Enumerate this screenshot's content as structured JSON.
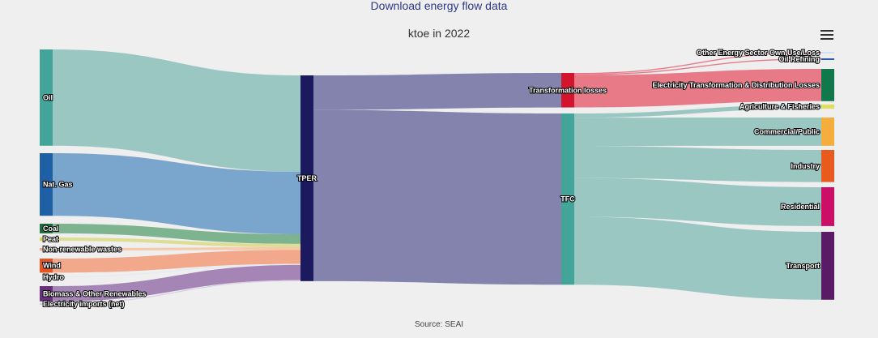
{
  "header": {
    "download_link": "Download energy flow data",
    "title": "ktoe in 2022",
    "menu_icon": "hamburger-menu-icon"
  },
  "footer": {
    "source": "Source: SEAI"
  },
  "chart_data": {
    "type": "sankey",
    "title": "ktoe in 2022",
    "unit": "ktoe",
    "nodes": [
      {
        "id": "oil",
        "label": "Oil",
        "color": "#43a49a"
      },
      {
        "id": "gas",
        "label": "Nat. Gas",
        "color": "#1f5fa6"
      },
      {
        "id": "coal",
        "label": "Coal",
        "color": "#1c6b3c"
      },
      {
        "id": "peat",
        "label": "Peat",
        "color": "#d9d34b"
      },
      {
        "id": "nrw",
        "label": "Non-renewable wastes",
        "color": "#f3a583"
      },
      {
        "id": "wind",
        "label": "Wind",
        "color": "#e8531f"
      },
      {
        "id": "hydro",
        "label": "Hydro",
        "color": "#e8eef5"
      },
      {
        "id": "bio",
        "label": "Biomass & Other Renewables",
        "color": "#6b2f7e"
      },
      {
        "id": "imp",
        "label": "Electricity imports (net)",
        "color": "#d4c8de"
      },
      {
        "id": "tper",
        "label": "TPER",
        "color": "#1c1a5e"
      },
      {
        "id": "tl",
        "label": "Transformation losses",
        "color": "#d2142c"
      },
      {
        "id": "tfc",
        "label": "TFC",
        "color": "#43a49a"
      },
      {
        "id": "oeso",
        "label": "Other Energy Sector Own Use/Loss",
        "color": "#cfe3f2"
      },
      {
        "id": "oref",
        "label": "Oil Refining",
        "color": "#2a5ca8"
      },
      {
        "id": "etd",
        "label": "Electricity Transformation & Distribution Losses",
        "color": "#10784a"
      },
      {
        "id": "agri",
        "label": "Agriculture & Fisheries",
        "color": "#e2dc5c"
      },
      {
        "id": "comm",
        "label": "Commercial/Public",
        "color": "#f5ad3d"
      },
      {
        "id": "ind",
        "label": "Industry",
        "color": "#e85a1e"
      },
      {
        "id": "res",
        "label": "Residential",
        "color": "#cc0f66"
      },
      {
        "id": "trans",
        "label": "Transport",
        "color": "#5a1a66"
      }
    ],
    "links": [
      {
        "source": "oil",
        "target": "tper",
        "value": 6000,
        "color": "#9bc7c3"
      },
      {
        "source": "gas",
        "target": "tper",
        "value": 3900,
        "color": "#7aa5cc"
      },
      {
        "source": "coal",
        "target": "tper",
        "value": 600,
        "color": "#7db38f"
      },
      {
        "source": "peat",
        "target": "tper",
        "value": 210,
        "color": "#dedd94"
      },
      {
        "source": "nrw",
        "target": "tper",
        "value": 160,
        "color": "#f5c9aa"
      },
      {
        "source": "wind",
        "target": "tper",
        "value": 880,
        "color": "#f2a88a"
      },
      {
        "source": "hydro",
        "target": "tper",
        "value": 60,
        "color": "#e4eaf2"
      },
      {
        "source": "bio",
        "target": "tper",
        "value": 950,
        "color": "#a585b6"
      },
      {
        "source": "imp",
        "target": "tper",
        "value": 60,
        "color": "#d9cfe2"
      },
      {
        "source": "tper",
        "target": "tl",
        "value": 2150,
        "color": "#8383ae"
      },
      {
        "source": "tper",
        "target": "tfc",
        "value": 10670,
        "color": "#8383ae"
      },
      {
        "source": "tl",
        "target": "oeso",
        "value": 70,
        "color": "#e87a88"
      },
      {
        "source": "tl",
        "target": "oref",
        "value": 70,
        "color": "#e87a88"
      },
      {
        "source": "tl",
        "target": "etd",
        "value": 2010,
        "color": "#e87a88"
      },
      {
        "source": "tfc",
        "target": "agri",
        "value": 260,
        "color": "#9bc7c3"
      },
      {
        "source": "tfc",
        "target": "comm",
        "value": 1760,
        "color": "#9bc7c3"
      },
      {
        "source": "tfc",
        "target": "ind",
        "value": 2000,
        "color": "#9bc7c3"
      },
      {
        "source": "tfc",
        "target": "res",
        "value": 2420,
        "color": "#9bc7c3"
      },
      {
        "source": "tfc",
        "target": "trans",
        "value": 4230,
        "color": "#9bc7c3"
      }
    ]
  }
}
